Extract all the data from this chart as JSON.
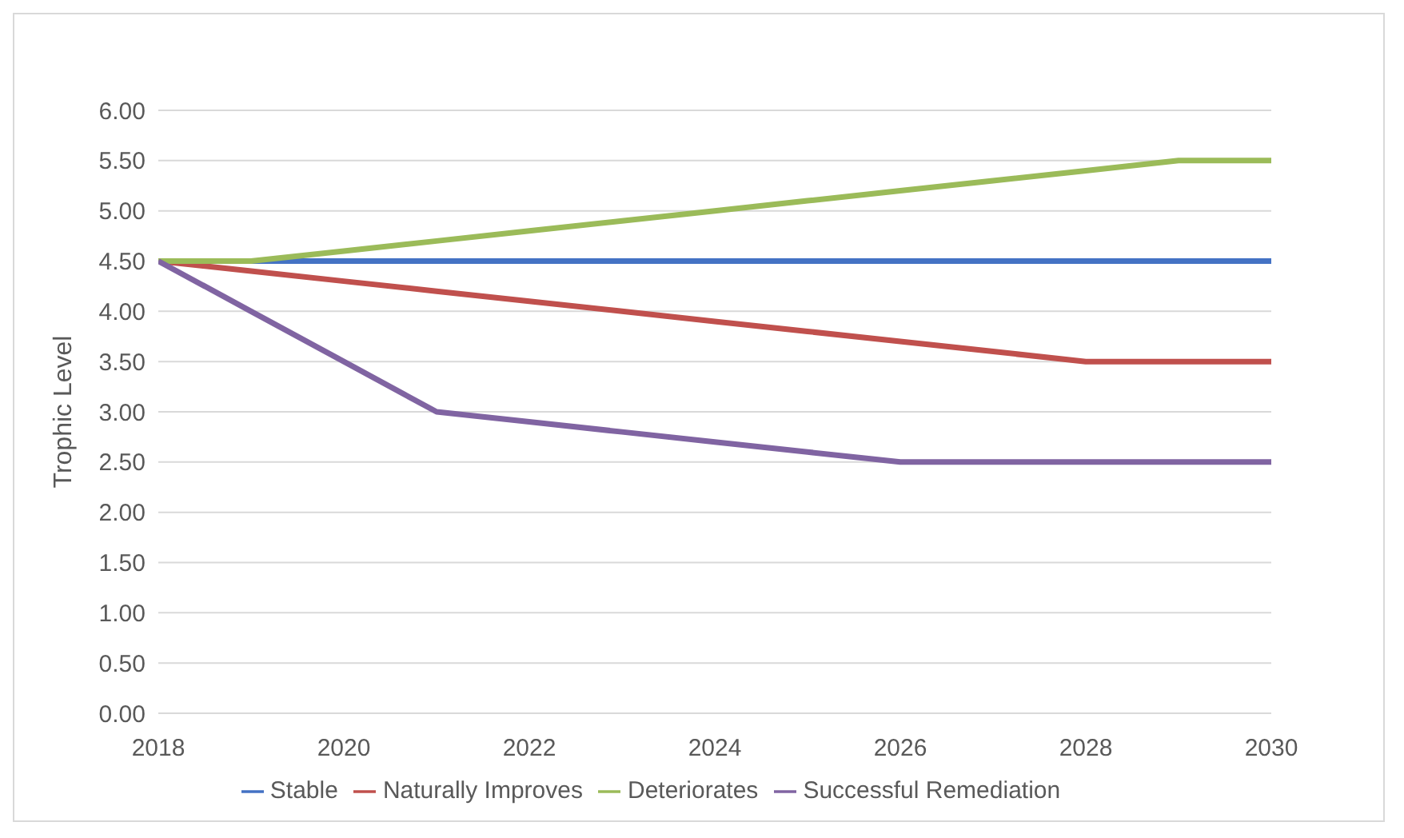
{
  "chart_data": {
    "type": "line",
    "ylabel": "Trophic Level",
    "x": [
      2018,
      2019,
      2020,
      2021,
      2022,
      2023,
      2024,
      2025,
      2026,
      2027,
      2028,
      2029,
      2030
    ],
    "series": [
      {
        "name": "Stable",
        "color": "#4472c4",
        "values": [
          4.5,
          4.5,
          4.5,
          4.5,
          4.5,
          4.5,
          4.5,
          4.5,
          4.5,
          4.5,
          4.5,
          4.5,
          4.5
        ]
      },
      {
        "name": "Naturally Improves",
        "color": "#c0504d",
        "values": [
          4.5,
          4.4,
          4.3,
          4.2,
          4.1,
          4.0,
          3.9,
          3.8,
          3.7,
          3.6,
          3.5,
          3.5,
          3.5
        ]
      },
      {
        "name": "Deteriorates",
        "color": "#9bbb59",
        "values": [
          4.5,
          4.5,
          4.6,
          4.7,
          4.8,
          4.9,
          5.0,
          5.1,
          5.2,
          5.3,
          5.4,
          5.5,
          5.5
        ]
      },
      {
        "name": "Successful Remediation",
        "color": "#8064a2",
        "values": [
          4.5,
          4.0,
          3.5,
          3.0,
          2.9,
          2.8,
          2.7,
          2.6,
          2.5,
          2.5,
          2.5,
          2.5,
          2.5
        ]
      }
    ],
    "xlim": [
      2018,
      2030
    ],
    "xticks": [
      2018,
      2020,
      2022,
      2024,
      2026,
      2028,
      2030
    ],
    "ylim": [
      0,
      6
    ],
    "yticks": [
      {
        "value": 0,
        "label": "0.00"
      },
      {
        "value": 0.5,
        "label": "0.50"
      },
      {
        "value": 1,
        "label": "1.00"
      },
      {
        "value": 1.5,
        "label": "1.50"
      },
      {
        "value": 2,
        "label": "2.00"
      },
      {
        "value": 2.5,
        "label": "2.50"
      },
      {
        "value": 3,
        "label": "3.00"
      },
      {
        "value": 3.5,
        "label": "3.50"
      },
      {
        "value": 4,
        "label": "4.00"
      },
      {
        "value": 4.5,
        "label": "4.50"
      },
      {
        "value": 5,
        "label": "5.00"
      },
      {
        "value": 5.5,
        "label": "5.50"
      },
      {
        "value": 6,
        "label": "6.00"
      }
    ],
    "grid": "y",
    "legend": "bottom",
    "marker": "none",
    "line_style": "solid"
  }
}
